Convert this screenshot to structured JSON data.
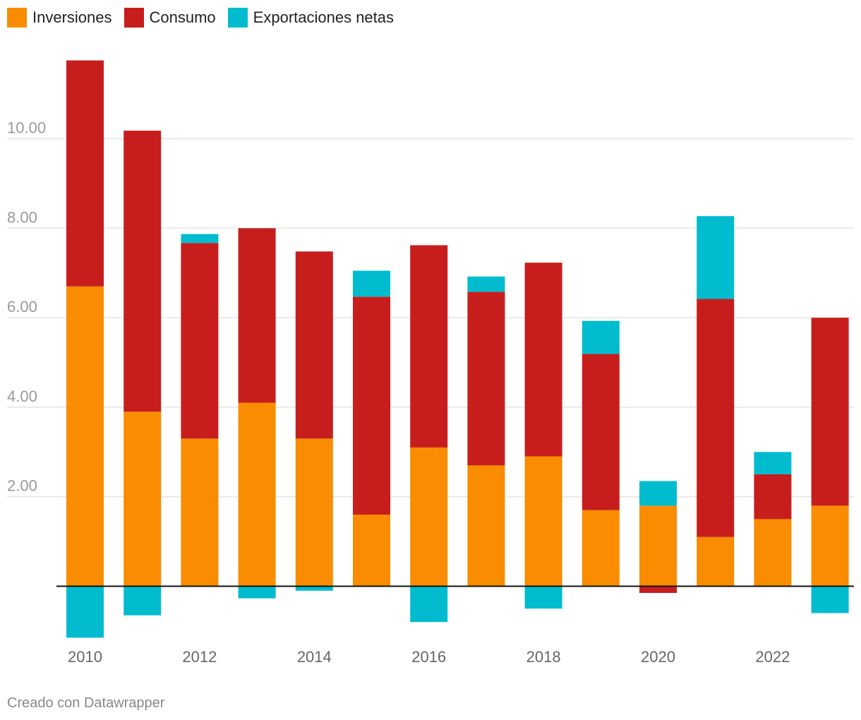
{
  "legend": {
    "items": [
      {
        "label": "Inversiones",
        "color": "#f98c00"
      },
      {
        "label": "Consumo",
        "color": "#c71e1d"
      },
      {
        "label": "Exportaciones netas",
        "color": "#00bcce"
      }
    ]
  },
  "footer": {
    "credit": "Creado con Datawrapper"
  },
  "chart_data": {
    "type": "bar",
    "stacked": true,
    "categories": [
      "2010",
      "2011",
      "2012",
      "2013",
      "2014",
      "2015",
      "2016",
      "2017",
      "2018",
      "2019",
      "2020",
      "2021",
      "2022",
      "2023"
    ],
    "x_tick_labels": [
      "2010",
      "",
      "2012",
      "",
      "2014",
      "",
      "2016",
      "",
      "2018",
      "",
      "2020",
      "",
      "2022",
      ""
    ],
    "series": [
      {
        "name": "Inversiones",
        "color": "#f98c00",
        "values": [
          6.7,
          3.9,
          3.3,
          4.1,
          3.3,
          1.6,
          3.1,
          2.7,
          2.9,
          1.7,
          1.8,
          1.1,
          1.5,
          1.8
        ]
      },
      {
        "name": "Consumo",
        "color": "#c71e1d",
        "values": [
          5.05,
          6.28,
          4.37,
          3.9,
          4.18,
          4.87,
          4.52,
          3.88,
          4.33,
          3.49,
          -0.15,
          5.32,
          1.0,
          4.2
        ]
      },
      {
        "name": "Exportaciones netas",
        "color": "#00bcce",
        "values": [
          -1.15,
          -0.65,
          0.2,
          -0.27,
          -0.1,
          0.58,
          -0.8,
          0.34,
          -0.5,
          0.74,
          0.55,
          1.85,
          0.5,
          -0.6
        ]
      }
    ],
    "y_ticks": [
      "2.00",
      "4.00",
      "6.00",
      "8.00",
      "10.00"
    ],
    "y_tick_values": [
      2,
      4,
      6,
      8,
      10
    ],
    "ylim": [
      -1.2,
      11.8
    ],
    "grid": true,
    "legend_position": "top-left",
    "title": "",
    "xlabel": "",
    "ylabel": ""
  }
}
